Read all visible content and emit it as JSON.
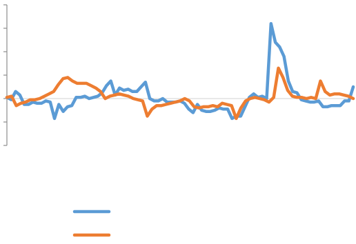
{
  "chart_data": {
    "type": "line",
    "title": "",
    "xlabel": "",
    "ylabel": "",
    "ylim": [
      -2,
      4
    ],
    "grid": false,
    "legend": "bottom",
    "series": [
      {
        "color": "#5b9bd5",
        "values": [
          0.05,
          -0.05,
          0.3,
          0.15,
          -0.25,
          -0.25,
          -0.15,
          -0.2,
          -0.2,
          -0.1,
          -0.15,
          -0.85,
          -0.25,
          -0.55,
          -0.35,
          -0.3,
          0.05,
          0.05,
          0.1,
          0.0,
          0.05,
          0.1,
          0.25,
          0.55,
          0.75,
          0.15,
          0.45,
          0.35,
          0.4,
          0.3,
          0.3,
          0.5,
          0.7,
          0.0,
          -0.1,
          -0.1,
          0.0,
          -0.15,
          -0.15,
          -0.15,
          -0.1,
          -0.2,
          -0.45,
          -0.6,
          -0.25,
          -0.5,
          -0.55,
          -0.55,
          -0.5,
          -0.4,
          -0.45,
          -0.45,
          -0.85,
          -0.75,
          -0.75,
          -0.35,
          0.05,
          0.2,
          0.05,
          0.1,
          0.0,
          3.2,
          2.4,
          2.2,
          1.8,
          0.75,
          0.3,
          0.25,
          -0.05,
          -0.1,
          -0.15,
          -0.15,
          -0.1,
          -0.35,
          -0.35,
          -0.3,
          -0.3,
          -0.3,
          -0.1,
          -0.1,
          0.5
        ]
      },
      {
        "color": "#ed7d31",
        "values": [
          0.05,
          0.1,
          -0.3,
          -0.2,
          -0.15,
          -0.05,
          -0.05,
          0.0,
          0.1,
          0.2,
          0.3,
          0.6,
          0.85,
          0.9,
          0.75,
          0.65,
          0.65,
          0.65,
          0.55,
          0.45,
          0.3,
          0.0,
          0.1,
          0.15,
          0.2,
          0.15,
          0.1,
          0.0,
          -0.05,
          -0.1,
          -0.75,
          -0.45,
          -0.3,
          -0.3,
          -0.25,
          -0.2,
          -0.15,
          -0.1,
          0.0,
          -0.1,
          -0.35,
          -0.4,
          -0.35,
          -0.35,
          -0.3,
          -0.35,
          -0.2,
          -0.25,
          -0.3,
          -0.85,
          -0.4,
          -0.1,
          0.0,
          0.05,
          0.0,
          -0.05,
          -0.15,
          0.05,
          1.3,
          0.9,
          0.35,
          0.1,
          0.05,
          0.05,
          0.0,
          0.05,
          0.0,
          0.75,
          0.3,
          0.15,
          0.2,
          0.2,
          0.15,
          0.1,
          0.0
        ]
      }
    ],
    "legend_entries": [
      {
        "color": "#5b9bd5"
      },
      {
        "color": "#ed7d31"
      }
    ]
  }
}
